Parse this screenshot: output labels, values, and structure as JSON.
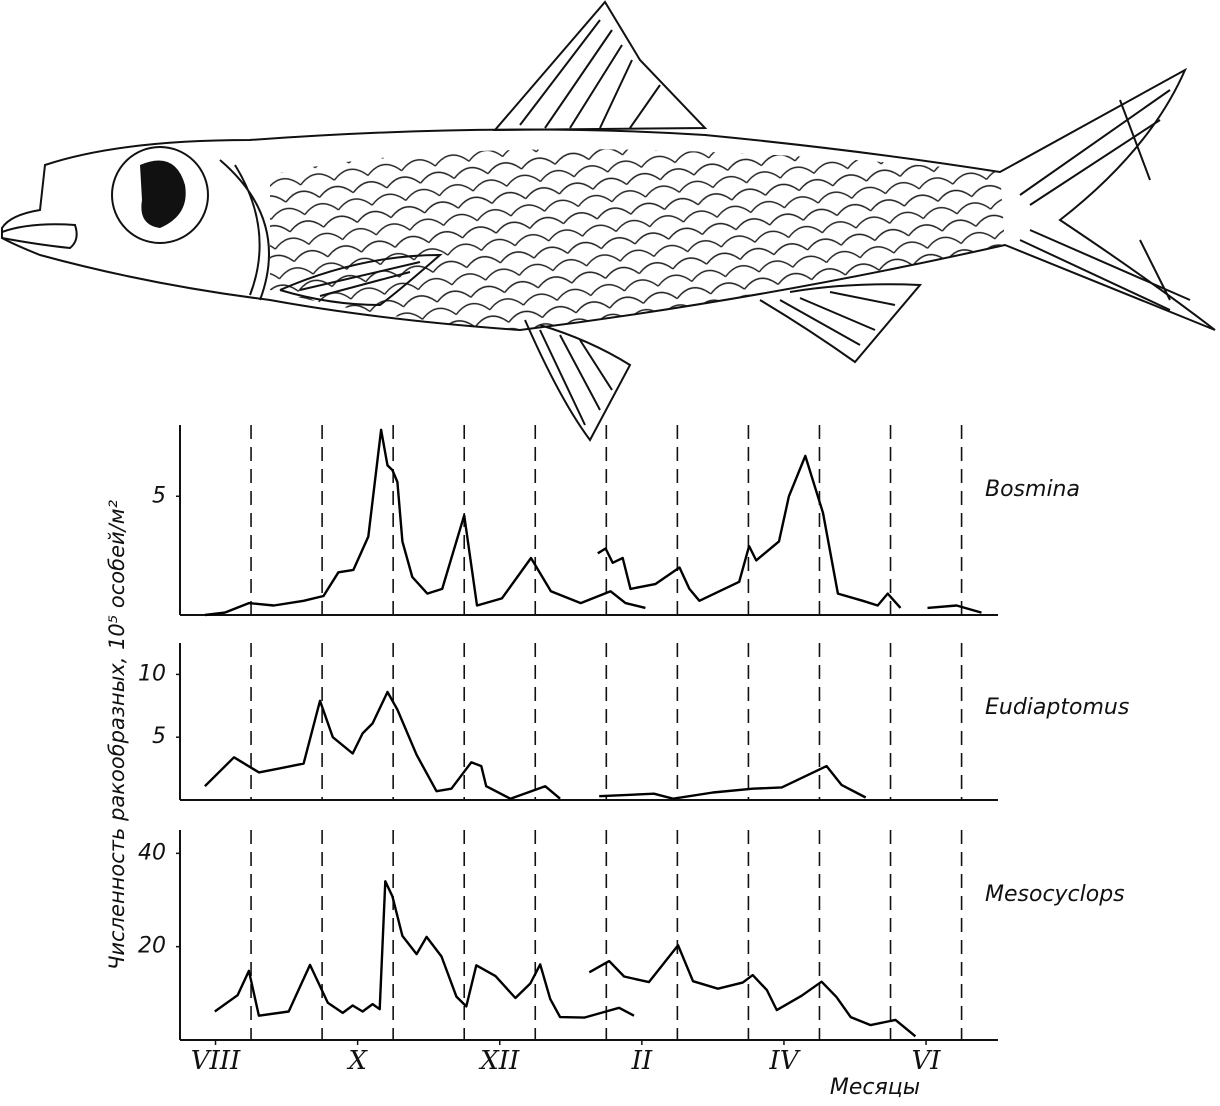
{
  "ylabel": "Численность ракообразных, 10⁵ особей/м²",
  "xlabel": "Месяцы",
  "chart_data": [
    {
      "type": "line",
      "xlim": [
        0,
        11.4
      ],
      "xgrid": [
        1,
        2,
        3,
        4,
        5,
        6,
        7,
        8,
        9,
        10,
        11
      ],
      "ylim": [
        0,
        8
      ],
      "yticks": [
        5
      ],
      "x": [
        0.35,
        0.63,
        0.97,
        1.32,
        1.74,
        2.02,
        2.23,
        2.44,
        2.65,
        2.83,
        2.92,
        2.99,
        3.06,
        3.13,
        3.27,
        3.48,
        3.69,
        4.0,
        4.18,
        4.53,
        4.94,
        5.22,
        5.64,
        6.06,
        6.27,
        6.55,
        null,
        5.88,
        5.99,
        6.09,
        6.23,
        6.34,
        6.69,
        7.03,
        7.17,
        7.31,
        7.87,
        8.01,
        8.11,
        8.43,
        8.57,
        8.8,
        9.05,
        9.26,
        9.61,
        9.82,
        9.96,
        10.14,
        null,
        10.52,
        10.93,
        11.28
      ],
      "series": [
        {
          "name": "Bosmina",
          "color": "#000000",
          "values": [
            0.0,
            0.1,
            0.5,
            0.4,
            0.6,
            0.8,
            1.8,
            1.9,
            3.3,
            7.8,
            6.3,
            6.1,
            5.6,
            3.1,
            1.6,
            0.9,
            1.1,
            4.2,
            0.4,
            0.7,
            2.4,
            1.0,
            0.5,
            1.0,
            0.5,
            0.3,
            null,
            2.6,
            2.8,
            2.2,
            2.4,
            1.1,
            1.3,
            2.0,
            1.1,
            0.6,
            1.4,
            2.9,
            2.3,
            3.1,
            5.0,
            6.7,
            4.3,
            0.9,
            0.6,
            0.4,
            0.9,
            0.3,
            null,
            0.3,
            0.4,
            0.1
          ]
        }
      ]
    },
    {
      "type": "line",
      "xlim": [
        0,
        11.4
      ],
      "xgrid": [
        1,
        2,
        3,
        4,
        5,
        6,
        7,
        8,
        9,
        10,
        11
      ],
      "ylim": [
        0,
        12.5
      ],
      "yticks": [
        5,
        10
      ],
      "x": [
        0.35,
        0.76,
        1.11,
        1.39,
        1.74,
        1.97,
        2.15,
        2.43,
        2.57,
        2.71,
        2.92,
        3.06,
        3.33,
        3.61,
        3.82,
        4.1,
        4.24,
        4.31,
        4.65,
        5.14,
        5.35,
        null,
        5.9,
        6.67,
        6.94,
        7.5,
        8.06,
        8.47,
        9.1,
        9.31,
        9.65
      ],
      "series": [
        {
          "name": "Eudiaptomus",
          "color": "#000000",
          "values": [
            1.1,
            3.4,
            2.2,
            2.5,
            2.9,
            7.9,
            5.0,
            3.7,
            5.3,
            6.1,
            8.6,
            7.2,
            3.6,
            0.7,
            0.9,
            3.0,
            2.7,
            1.1,
            0.1,
            1.1,
            0.1,
            null,
            0.3,
            0.5,
            0.1,
            0.6,
            0.9,
            1.0,
            2.7,
            1.2,
            0.2
          ]
        }
      ]
    },
    {
      "type": "line",
      "xlim": [
        0,
        11.4
      ],
      "xgrid": [
        1,
        2,
        3,
        4,
        5,
        6,
        7,
        8,
        9,
        10,
        11
      ],
      "ylim": [
        0,
        45
      ],
      "yticks": [
        20,
        40
      ],
      "xticks": [
        {
          "value": 0.5,
          "label": "VIII"
        },
        {
          "value": 2.5,
          "label": "X"
        },
        {
          "value": 4.5,
          "label": "XII"
        },
        {
          "value": 6.5,
          "label": "II"
        },
        {
          "value": 8.5,
          "label": "IV"
        },
        {
          "value": 10.5,
          "label": "VI"
        }
      ],
      "x": [
        0.49,
        0.81,
        0.97,
        1.11,
        1.53,
        1.83,
        2.08,
        2.29,
        2.43,
        2.57,
        2.71,
        2.81,
        2.89,
        2.99,
        3.13,
        3.33,
        3.47,
        3.68,
        3.89,
        4.03,
        4.17,
        4.44,
        4.72,
        4.93,
        5.07,
        5.21,
        5.35,
        5.69,
        5.97,
        6.18,
        6.39,
        null,
        5.76,
        6.04,
        6.25,
        6.6,
        7.01,
        7.22,
        7.57,
        7.92,
        8.06,
        8.26,
        8.4,
        8.75,
        9.03,
        9.24,
        9.44,
        9.72,
        10.07,
        10.35
      ],
      "series": [
        {
          "name": "Mesocyclops",
          "color": "#000000",
          "values": [
            6.1,
            9.6,
            14.8,
            5.2,
            6.1,
            16.1,
            8.0,
            5.8,
            7.4,
            6.1,
            7.7,
            6.6,
            34.0,
            30.8,
            22.3,
            18.4,
            22.1,
            17.9,
            9.3,
            7.2,
            16.0,
            13.7,
            9.0,
            12.1,
            16.2,
            8.8,
            4.9,
            4.8,
            6.0,
            6.9,
            5.2,
            null,
            14.5,
            16.9,
            13.6,
            12.4,
            20.3,
            12.6,
            11.0,
            12.3,
            13.9,
            10.7,
            6.4,
            9.5,
            12.5,
            9.2,
            4.9,
            3.2,
            4.3,
            0.8
          ]
        }
      ]
    }
  ]
}
